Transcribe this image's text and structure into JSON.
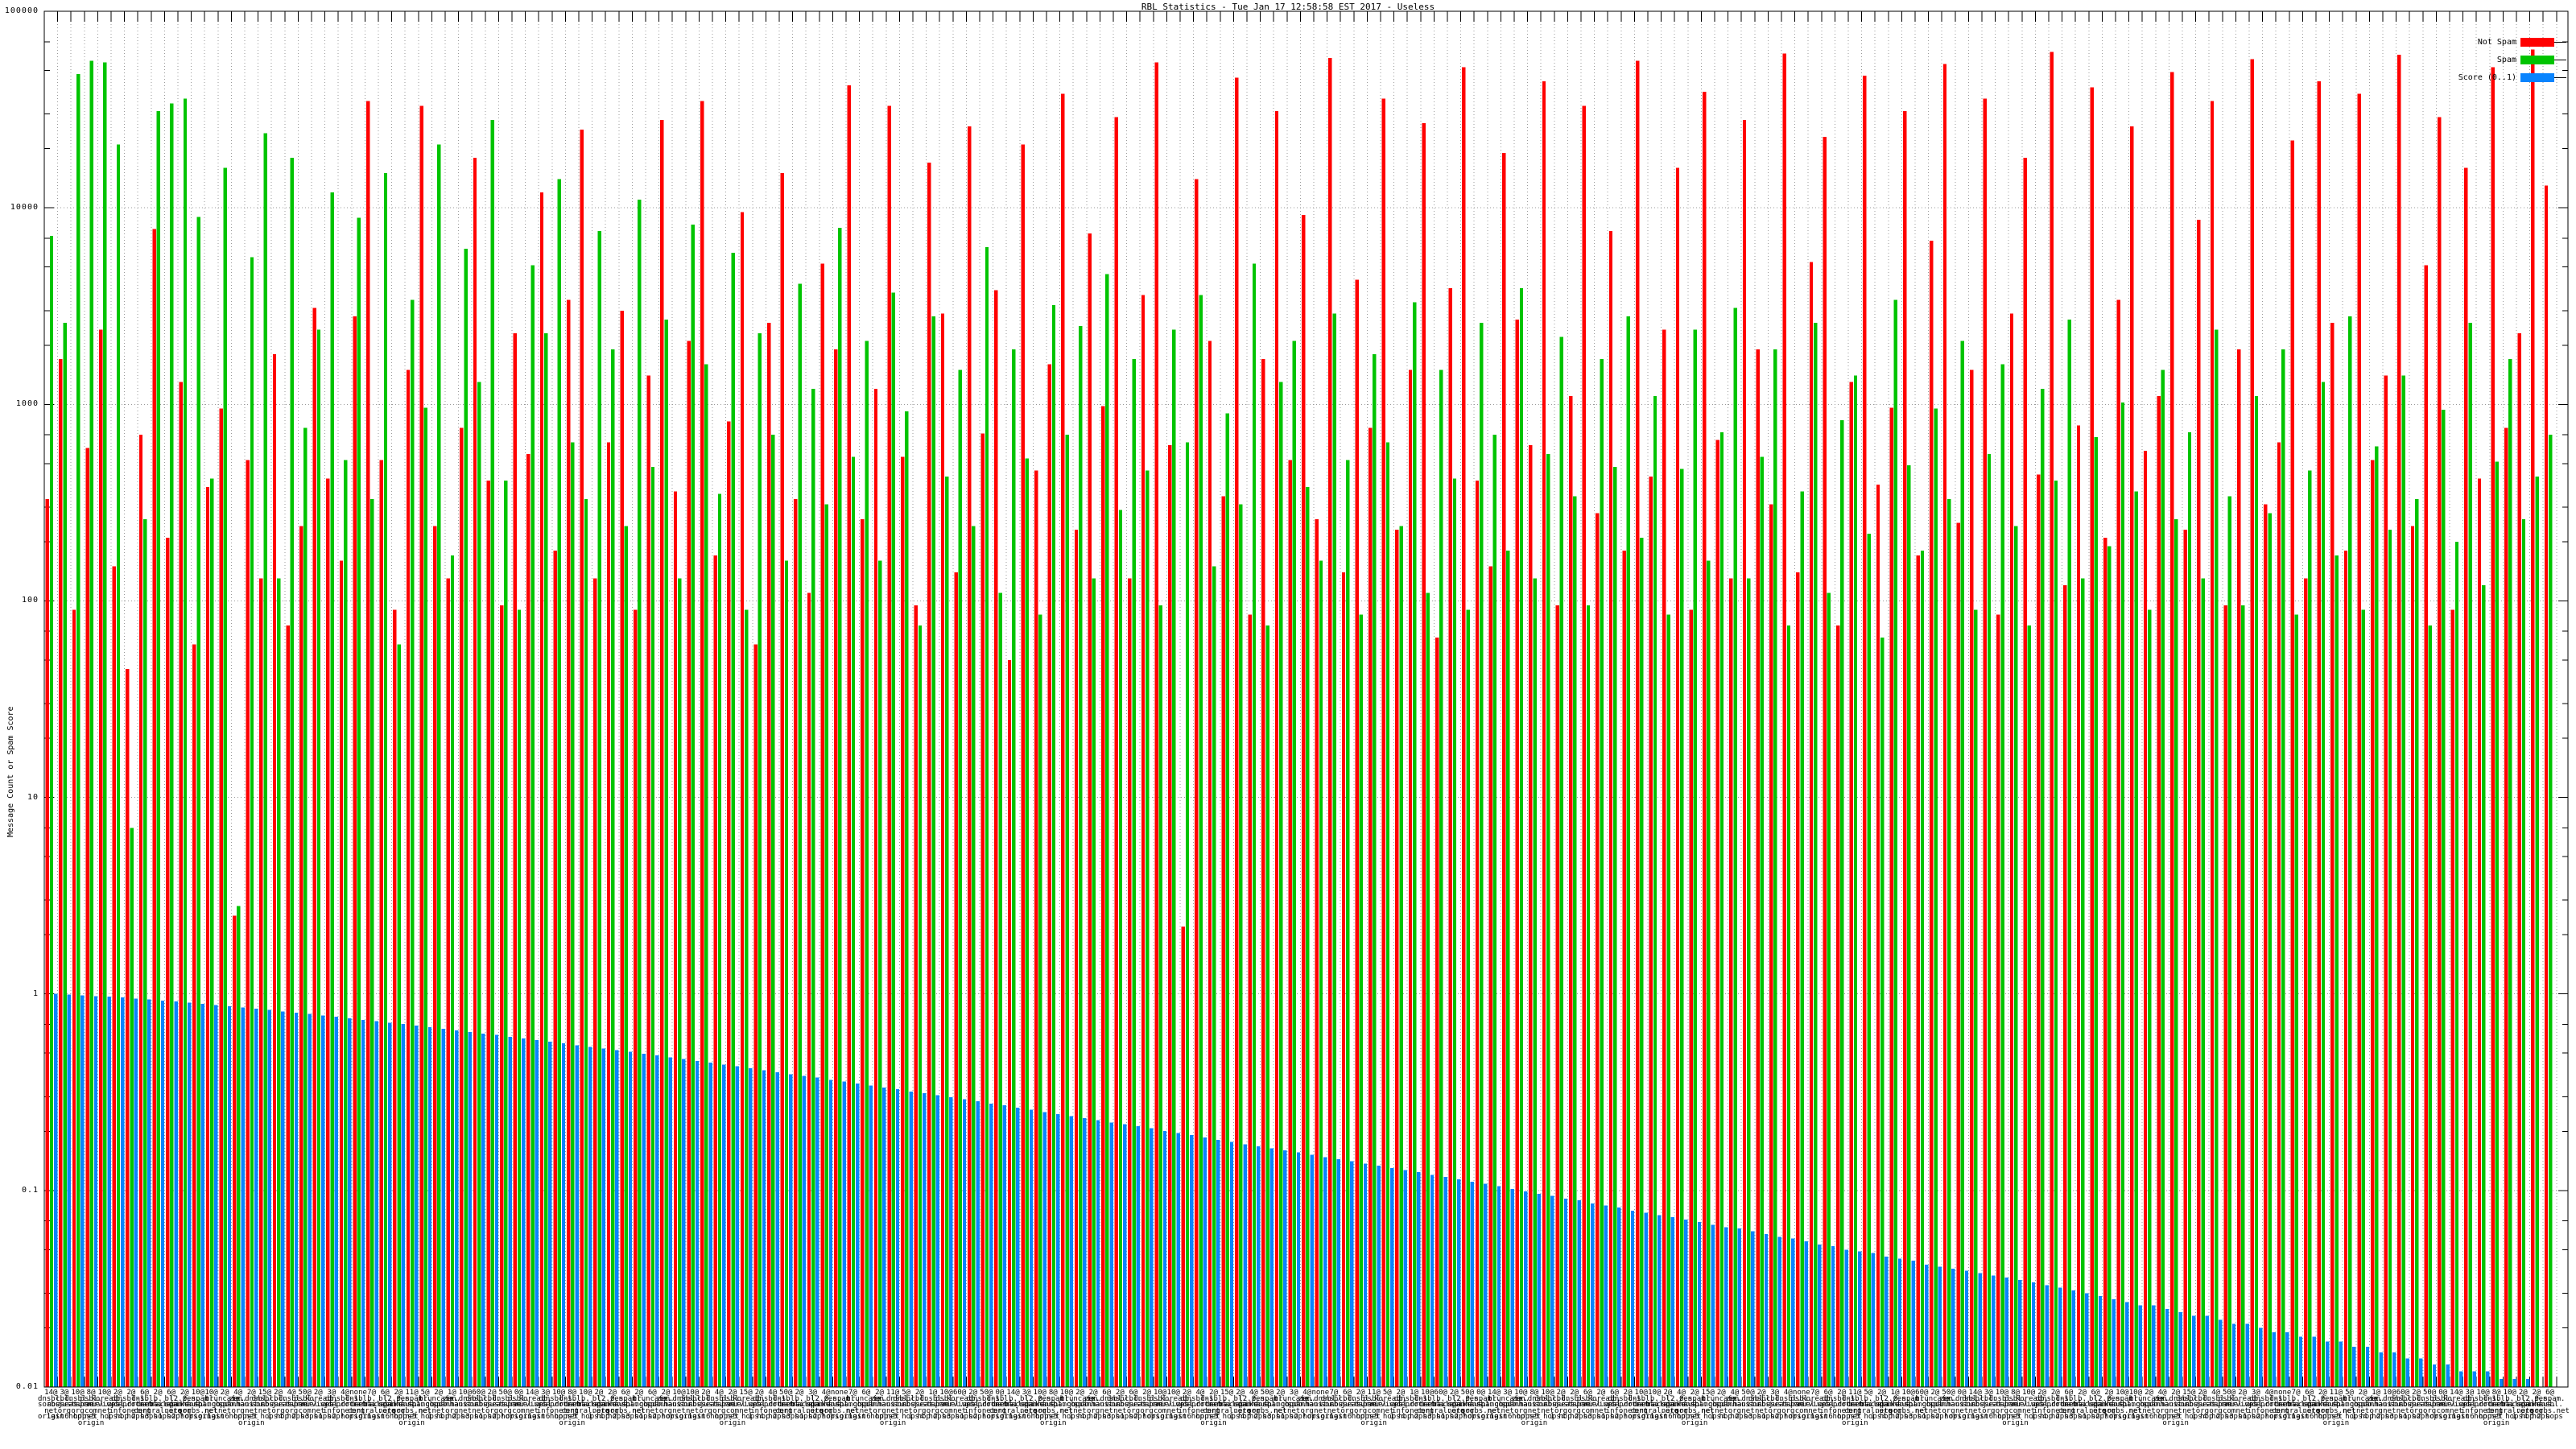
{
  "title": "RBL Statistics - Tue Jan 17 12:58:58 EST 2017 - Useless",
  "legend": [
    {
      "label": "Not Spam",
      "color": "#ff0000"
    },
    {
      "label": "Spam",
      "color": "#00c400"
    },
    {
      "label": "Score (0..1)",
      "color": "#0984fe"
    }
  ],
  "chart_data": {
    "type": "bar",
    "title": "RBL Statistics - Tue Jan 17 12:58:58 EST 2017 - Useless",
    "xlabel": "",
    "ylabel": "Message Count or Spam Score",
    "yscale": "log",
    "ylim": [
      0.01,
      100000
    ],
    "grid": true,
    "legend_position": "top-right",
    "ytick_values": [
      100000,
      10000,
      1000,
      100,
      10,
      1,
      0.1,
      0.01
    ],
    "ytick_labels": [
      "100000",
      "10000",
      "1000",
      "100",
      "10",
      "1",
      "0.1",
      "0.01"
    ],
    "series": [
      {
        "name": "Not Spam",
        "color": "#ff0000",
        "values": [
          330,
          1700,
          90,
          600,
          2400,
          150,
          45,
          700,
          7800,
          210,
          1300,
          60,
          380,
          950,
          2.5,
          520,
          130,
          1800,
          75,
          240,
          3100,
          420,
          160,
          2800,
          35000,
          520,
          90,
          1500,
          33000,
          240,
          130,
          760,
          18000,
          410,
          95,
          2300,
          560,
          12000,
          180,
          3400,
          25000,
          130,
          640,
          3000,
          90,
          1400,
          28000,
          360,
          2100,
          35000,
          170,
          820,
          9500,
          60,
          2600,
          15000,
          330,
          110,
          5200,
          1900,
          42000,
          260,
          1200,
          33000,
          540,
          95,
          17000,
          2900,
          140,
          26000,
          710,
          3800,
          50,
          21000,
          460,
          1600,
          38000,
          230,
          7400,
          980,
          29000,
          130,
          3600,
          55000,
          620,
          2.2,
          14000,
          2100,
          340,
          46000,
          85,
          1700,
          31000,
          520,
          9200,
          260,
          58000,
          140,
          4300,
          760,
          36000,
          230,
          1500,
          27000,
          65,
          3900,
          52000,
          410,
          150,
          19000,
          2700,
          620,
          44000,
          95,
          1100,
          33000,
          280,
          7600,
          180,
          56000,
          430,
          2400,
          16000,
          90,
          39000,
          660,
          130,
          28000,
          1900,
          310,
          61000,
          140,
          5300,
          23000,
          75,
          1300,
          47000,
          390,
          960,
          31000,
          170,
          6800,
          54000,
          250,
          1500,
          36000,
          85,
          2900,
          18000,
          440,
          62000,
          120,
          780,
          41000,
          210,
          3400,
          26000,
          580,
          1100,
          49000,
          230,
          8700,
          35000,
          95,
          1900,
          57000,
          310,
          640,
          22000,
          130,
          44000,
          2600,
          180,
          38000,
          520,
          1400,
          60000,
          240,
          5100,
          29000,
          90,
          16000,
          420,
          52000,
          760,
          2300,
          64000,
          13000
        ]
      },
      {
        "name": "Spam",
        "color": "#00c400",
        "values": [
          7200,
          2600,
          48000,
          56000,
          55000,
          21000,
          7,
          260,
          31000,
          34000,
          36000,
          9000,
          420,
          16000,
          2.8,
          5600,
          24000,
          130,
          18000,
          760,
          2400,
          12000,
          520,
          8900,
          330,
          15000,
          60,
          3400,
          960,
          21000,
          170,
          6200,
          1300,
          28000,
          410,
          90,
          5100,
          2300,
          14000,
          640,
          330,
          7600,
          1900,
          240,
          11000,
          480,
          2700,
          130,
          8200,
          1600,
          350,
          5900,
          90,
          2300,
          700,
          160,
          4100,
          1200,
          310,
          7900,
          540,
          2100,
          160,
          3700,
          920,
          75,
          2800,
          430,
          1500,
          240,
          6300,
          110,
          1900,
          530,
          85,
          3200,
          700,
          2500,
          130,
          4600,
          290,
          1700,
          460,
          95,
          2400,
          640,
          3600,
          150,
          900,
          310,
          5200,
          75,
          1300,
          2100,
          380,
          160,
          2900,
          520,
          85,
          1800,
          640,
          240,
          3300,
          110,
          1500,
          420,
          90,
          2600,
          700,
          180,
          3900,
          130,
          560,
          2200,
          340,
          95,
          1700,
          480,
          2800,
          210,
          1100,
          85,
          470,
          2400,
          160,
          720,
          3100,
          130,
          540,
          1900,
          75,
          360,
          2600,
          110,
          830,
          1400,
          220,
          65,
          3400,
          490,
          180,
          950,
          330,
          2100,
          90,
          560,
          1600,
          240,
          75,
          1200,
          410,
          2700,
          130,
          680,
          190,
          1020,
          360,
          90,
          1500,
          260,
          720,
          130,
          2400,
          340,
          95,
          1100,
          280,
          1900,
          85,
          460,
          1300,
          170,
          2800,
          90,
          610,
          230,
          1400,
          330,
          75,
          940,
          200,
          2600,
          120,
          510,
          1700,
          260,
          430,
          700
        ]
      },
      {
        "name": "Score (0..1)",
        "color": "#0984fe",
        "values": [
          1.0,
          0.992,
          0.984,
          0.976,
          0.968,
          0.959,
          0.948,
          0.937,
          0.926,
          0.914,
          0.903,
          0.891,
          0.879,
          0.866,
          0.854,
          0.841,
          0.828,
          0.816,
          0.803,
          0.791,
          0.778,
          0.765,
          0.752,
          0.739,
          0.727,
          0.714,
          0.702,
          0.69,
          0.678,
          0.665,
          0.653,
          0.641,
          0.629,
          0.618,
          0.606,
          0.594,
          0.583,
          0.572,
          0.56,
          0.549,
          0.538,
          0.528,
          0.517,
          0.507,
          0.496,
          0.486,
          0.476,
          0.466,
          0.456,
          0.447,
          0.437,
          0.428,
          0.419,
          0.409,
          0.4,
          0.391,
          0.383,
          0.375,
          0.366,
          0.358,
          0.35,
          0.342,
          0.334,
          0.327,
          0.319,
          0.312,
          0.305,
          0.298,
          0.291,
          0.284,
          0.277,
          0.271,
          0.264,
          0.258,
          0.251,
          0.245,
          0.239,
          0.233,
          0.228,
          0.222,
          0.217,
          0.212,
          0.207,
          0.201,
          0.196,
          0.191,
          0.186,
          0.181,
          0.177,
          0.172,
          0.168,
          0.164,
          0.16,
          0.156,
          0.152,
          0.148,
          0.144,
          0.141,
          0.137,
          0.134,
          0.13,
          0.127,
          0.124,
          0.12,
          0.117,
          0.114,
          0.111,
          0.108,
          0.105,
          0.102,
          0.099,
          0.096,
          0.094,
          0.091,
          0.089,
          0.086,
          0.084,
          0.082,
          0.079,
          0.077,
          0.075,
          0.073,
          0.071,
          0.069,
          0.067,
          0.065,
          0.064,
          0.062,
          0.06,
          0.058,
          0.057,
          0.055,
          0.053,
          0.052,
          0.05,
          0.049,
          0.048,
          0.046,
          0.045,
          0.044,
          0.042,
          0.041,
          0.04,
          0.039,
          0.038,
          0.037,
          0.036,
          0.035,
          0.034,
          0.033,
          0.032,
          0.031,
          0.03,
          0.029,
          0.028,
          0.027,
          0.026,
          0.026,
          0.025,
          0.024,
          0.023,
          0.023,
          0.022,
          0.021,
          0.021,
          0.02,
          0.019,
          0.019,
          0.018,
          0.018,
          0.017,
          0.017,
          0.016,
          0.016,
          0.015,
          0.015,
          0.014,
          0.014,
          0.013,
          0.013,
          0.012,
          0.012,
          0.012,
          0.011,
          0.011,
          0.011,
          0.01,
          0.01
        ]
      }
    ],
    "xlabel_prefixes": [
      "14@",
      "3@",
      "10@",
      "8@",
      "10@",
      "2@",
      "2@",
      "6@",
      "2@",
      "6@",
      "2@",
      "10@",
      "10@",
      "2@",
      "4@",
      "2@",
      "15@",
      "2@",
      "4@",
      "50@",
      "2@",
      "3@",
      "4@",
      "none",
      "7@",
      "6@",
      "2@",
      "11@",
      "5@",
      "2@",
      "1@",
      "10@",
      "60@",
      "2@",
      "50@",
      "0@"
    ],
    "xlabel_rbls": [
      "dnsbl.\nsorbs.\nnet",
      "dnsbl.\ndronebl.\norg",
      "zen.\nspamhaus.\norg",
      "db.\nwpbl.\ninfo",
      "bl.\nspamcop.\nnet",
      "psbl.\nsurriel.\ncom",
      "l2.zen.\nspamhaus.\norg",
      "cbl.\nabuseat.\norg",
      "b.\nbarracuda\ncentral.org",
      "ix.dnsbl.\nmanitu.\nnet",
      "dnsbl-1.\nuceprotect\n.net",
      "truncate.\ngbudb.\nnet",
      "korea.\nservices.\nnet",
      "0.spam.\ndnsbl.\nsorbs.net",
      "dnsbl.\njustspam.\norg",
      "bl.\nmailspike.\nnet"
    ],
    "xlabel_suffixes": [
      "origin",
      "1 hop",
      "2 hops",
      "net\norigin",
      "3 hops",
      "last hop",
      "4 hops",
      "origin",
      "5 hops",
      "1 hop!",
      "6 hops",
      "2 hops"
    ]
  }
}
